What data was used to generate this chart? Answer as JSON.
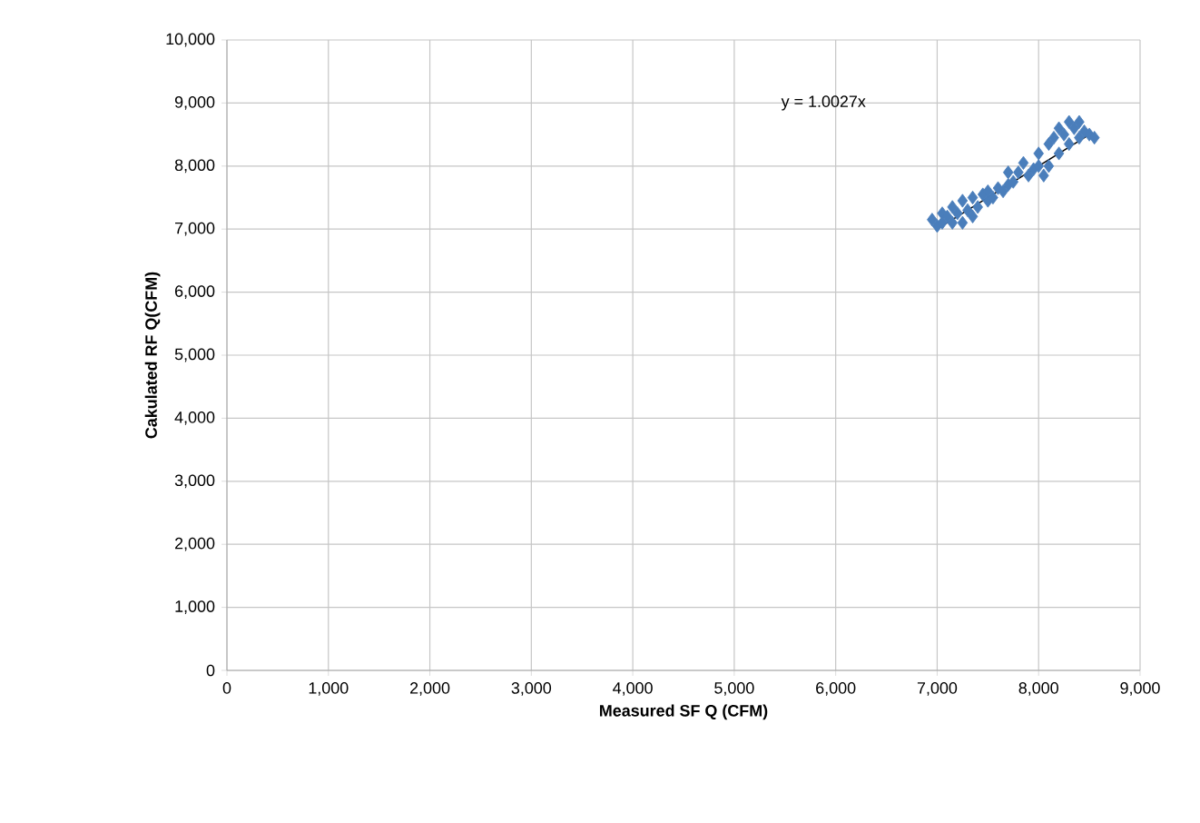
{
  "chart_data": {
    "type": "scatter",
    "xlabel": "Measured SF Q (CFM)",
    "ylabel": "Cakulated  RF Q(CFM)",
    "annotations": [
      "y = 1.0027x"
    ],
    "xlim": [
      0,
      9000
    ],
    "ylim": [
      0,
      10000
    ],
    "grid": true,
    "xticks": [
      0,
      {
        "value": 1000,
        "label": "1,000"
      },
      {
        "value": 2000,
        "label": "2,000"
      },
      {
        "value": 3000,
        "label": "3,000"
      },
      {
        "value": 4000,
        "label": "4,000"
      },
      {
        "value": 5000,
        "label": "5,000"
      },
      {
        "value": 6000,
        "label": "6,000"
      },
      {
        "value": 7000,
        "label": "7,000"
      },
      {
        "value": 8000,
        "label": "8,000"
      },
      {
        "value": 9000,
        "label": "9,000"
      }
    ],
    "yticks": [
      0,
      {
        "value": 1000,
        "label": "1,000"
      },
      {
        "value": 2000,
        "label": "2,000"
      },
      {
        "value": 3000,
        "label": "3,000"
      },
      {
        "value": 4000,
        "label": "4,000"
      },
      {
        "value": 5000,
        "label": "5,000"
      },
      {
        "value": 6000,
        "label": "6,000"
      },
      {
        "value": 7000,
        "label": "7,000"
      },
      {
        "value": 8000,
        "label": "8,000"
      },
      {
        "value": 9000,
        "label": "9,000"
      },
      {
        "value": 10000,
        "label": "10,000"
      }
    ],
    "series": [
      {
        "color": "#4a7ebb",
        "marker": "diamond",
        "x": [
          6950,
          7000,
          7050,
          7050,
          7100,
          7150,
          7150,
          7200,
          7250,
          7250,
          7300,
          7350,
          7350,
          7400,
          7450,
          7500,
          7500,
          7550,
          7600,
          7650,
          7700,
          7700,
          7750,
          7800,
          7850,
          7900,
          7950,
          8000,
          8000,
          8050,
          8100,
          8100,
          8150,
          8200,
          8200,
          8250,
          8300,
          8300,
          8350,
          8400,
          8400,
          8450,
          8500,
          8550
        ],
        "values": [
          7150,
          7050,
          7250,
          7100,
          7200,
          7100,
          7350,
          7250,
          7100,
          7450,
          7300,
          7200,
          7500,
          7350,
          7550,
          7450,
          7600,
          7500,
          7650,
          7600,
          7700,
          7900,
          7750,
          7900,
          8050,
          7850,
          7950,
          8000,
          8200,
          7850,
          8350,
          8000,
          8450,
          8600,
          8200,
          8500,
          8700,
          8350,
          8600,
          8450,
          8700,
          8550,
          8500,
          8450
        ]
      },
      {
        "type": "line",
        "marker": "none",
        "color": "#000000",
        "x": [
          7000,
          8500
        ],
        "values": [
          7000,
          8500
        ]
      }
    ]
  }
}
